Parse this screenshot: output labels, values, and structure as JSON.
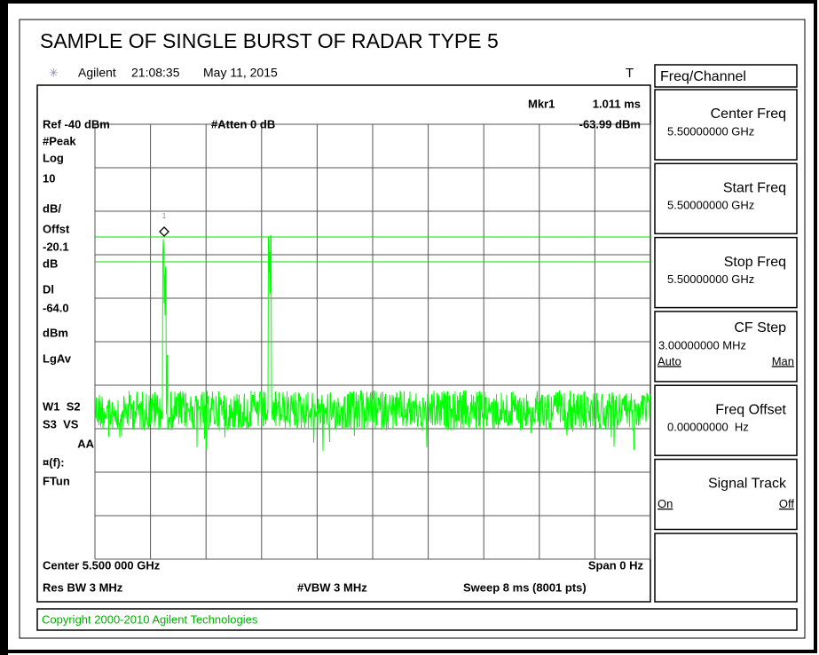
{
  "title": "SAMPLE OF SINGLE BURST OF RADAR TYPE 5",
  "header": {
    "brand": "Agilent",
    "time": "21:08:35",
    "date": "May 11, 2015",
    "trigger": "T"
  },
  "screen": {
    "marker_name": "Mkr1",
    "marker_time": "1.011 ms",
    "marker_level": "-63.99 dBm",
    "marker_number": "1",
    "ref_level": "Ref -40 dBm",
    "attenuation": "#Atten 0 dB",
    "left_labels": [
      "#Peak",
      "Log",
      "10",
      "dB/",
      "Offst",
      "-20.1",
      "dB",
      "Dl",
      "-64.0",
      "dBm",
      "LgAv",
      "W1  S2",
      "S3  VS",
      "AA",
      "¤(f):",
      "FTun"
    ],
    "center": "Center 5.500 000 GHz",
    "span": "Span 0 Hz",
    "res_bw": "Res BW 3 MHz",
    "vbw": "#VBW 3 MHz",
    "sweep": "Sweep 8 ms (8001 pts)"
  },
  "menu": {
    "title": "Freq/Channel",
    "keys": [
      {
        "label": "Center Freq",
        "value": "5.50000000 GHz"
      },
      {
        "label": "Start Freq",
        "value": "5.50000000 GHz"
      },
      {
        "label": "Stop Freq",
        "value": "5.50000000 GHz"
      },
      {
        "label": "CF Step",
        "value": "3.00000000 MHz",
        "options": [
          "Auto",
          "Man"
        ]
      },
      {
        "label": "Freq Offset",
        "value": "0.00000000  Hz"
      },
      {
        "label": "Signal Track",
        "options": [
          "On",
          "Off"
        ]
      }
    ]
  },
  "status": "Copyright 2000-2010 Agilent Technologies"
}
